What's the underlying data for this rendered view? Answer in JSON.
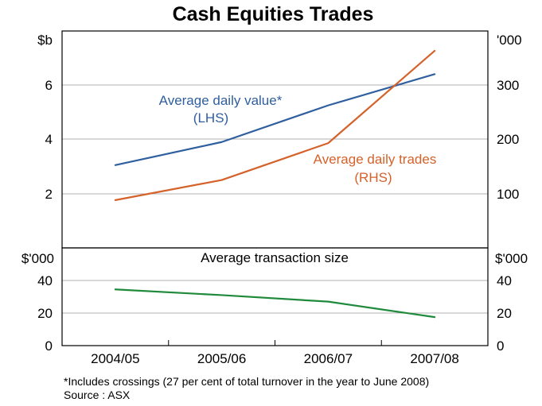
{
  "chart_data": [
    {
      "type": "line",
      "title": "Cash Equities Trades",
      "categories": [
        "2004/05",
        "2005/06",
        "2006/07",
        "2007/08"
      ],
      "left_unit": "$b",
      "right_unit": "'000",
      "ylim_left": [
        0,
        8
      ],
      "ylim_right": [
        0,
        400
      ],
      "left_ticks": [
        "2",
        "4",
        "6"
      ],
      "right_ticks": [
        "100",
        "200",
        "300"
      ],
      "grid": true,
      "series": [
        {
          "name": "Average daily value*",
          "axis_note": "(LHS)",
          "axis": "left",
          "color": "#2f5f9e",
          "values": [
            3.05,
            3.9,
            5.25,
            6.4
          ]
        },
        {
          "name": "Average daily trades",
          "axis_note": "(RHS)",
          "axis": "right",
          "color": "#d4622a",
          "values": [
            88,
            125,
            193,
            363
          ]
        }
      ]
    },
    {
      "type": "line",
      "title": "Average transaction size",
      "categories": [
        "2004/05",
        "2005/06",
        "2006/07",
        "2007/08"
      ],
      "left_unit": "$'000",
      "right_unit": "$'000",
      "ylim": [
        0,
        60
      ],
      "left_ticks": [
        "0",
        "20",
        "40"
      ],
      "right_ticks": [
        "0",
        "20",
        "40"
      ],
      "grid": true,
      "series": [
        {
          "axis": "left",
          "color": "#1f8a3c",
          "values": [
            34.5,
            31,
            27,
            17.5
          ]
        }
      ]
    }
  ],
  "footnote": "*Includes crossings (27 per cent of total turnover in the year to June 2008)",
  "source": "Source : ASX"
}
